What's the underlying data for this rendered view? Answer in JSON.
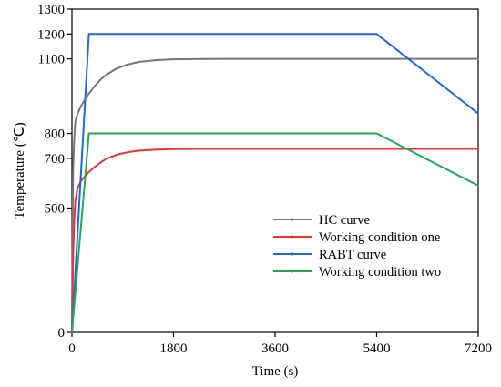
{
  "chart_data": {
    "type": "line",
    "xlabel": "Time (s)",
    "ylabel": "Temperature (℃)",
    "xlim": [
      0,
      7200
    ],
    "ylim": [
      0,
      1300
    ],
    "xticks": [
      0,
      1800,
      3600,
      5400,
      7200
    ],
    "yticks": [
      0,
      500,
      700,
      800,
      1100,
      1200,
      1300
    ],
    "grid": false,
    "legend_position": "center-right",
    "series": [
      {
        "name": "HC curve",
        "color": "#777777",
        "x": [
          0,
          20,
          40,
          60,
          100,
          150,
          200,
          300,
          400,
          500,
          600,
          800,
          1000,
          1200,
          1500,
          1800,
          2200,
          2700,
          3600,
          4500,
          5400,
          6300,
          7200
        ],
        "y": [
          0,
          650,
          780,
          850,
          880,
          905,
          925,
          960,
          990,
          1015,
          1035,
          1062,
          1078,
          1088,
          1095,
          1098,
          1099,
          1100,
          1100,
          1100,
          1100,
          1100,
          1100
        ]
      },
      {
        "name": "Working condition one",
        "color": "#ee3333",
        "x": [
          0,
          20,
          40,
          60,
          100,
          150,
          200,
          300,
          400,
          500,
          600,
          800,
          1000,
          1200,
          1500,
          1800,
          2200,
          2700,
          3600,
          4500,
          5400,
          6300,
          7200
        ],
        "y": [
          0,
          300,
          450,
          530,
          580,
          605,
          620,
          645,
          665,
          682,
          697,
          715,
          725,
          731,
          735,
          737,
          738,
          738,
          738,
          738,
          738,
          738,
          738
        ]
      },
      {
        "name": "RABT curve",
        "color": "#2266dd",
        "x": [
          0,
          300,
          5400,
          7200
        ],
        "y": [
          0,
          1200,
          1200,
          880
        ]
      },
      {
        "name": "Working condition two",
        "color": "#22aa55",
        "x": [
          0,
          300,
          5400,
          7200
        ],
        "y": [
          0,
          800,
          800,
          590
        ]
      }
    ]
  }
}
